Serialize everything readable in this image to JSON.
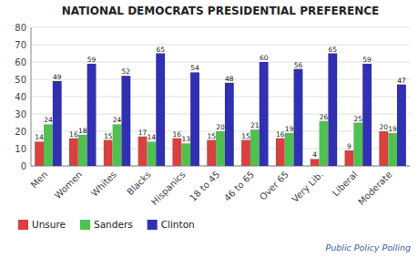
{
  "chart_data": {
    "type": "bar",
    "title": "NATIONAL DEMOCRATS PRESIDENTIAL PREFERENCE",
    "categories": [
      "Men",
      "Women",
      "Whites",
      "Blacks",
      "Hispanics",
      "18 to 45",
      "46 to 65",
      "Over 65",
      "Very Lib.",
      "Liberal",
      "Moderate"
    ],
    "series": [
      {
        "name": "Unsure",
        "color": "#d94040",
        "values": [
          14,
          16,
          15,
          17,
          16,
          15,
          15,
          16,
          4,
          9,
          20
        ]
      },
      {
        "name": "Sanders",
        "color": "#50c050",
        "values": [
          24,
          18,
          24,
          14,
          13,
          20,
          21,
          19,
          26,
          25,
          19
        ]
      },
      {
        "name": "Clinton",
        "color": "#3030b0",
        "values": [
          49,
          59,
          52,
          65,
          54,
          48,
          60,
          56,
          65,
          59,
          47
        ]
      }
    ],
    "ylim": [
      0,
      80
    ],
    "yticks": [
      0,
      10,
      20,
      30,
      40,
      50,
      60,
      70,
      80
    ],
    "grid": true,
    "legend": "bottom",
    "data_labels": true,
    "annotations": [
      "Public Policy Polling"
    ]
  }
}
